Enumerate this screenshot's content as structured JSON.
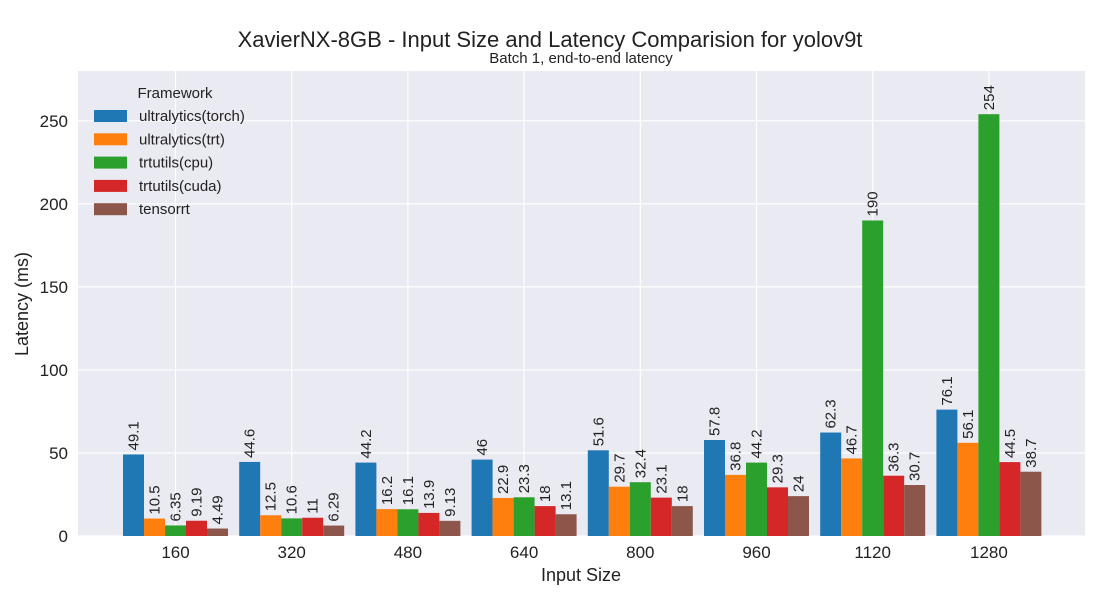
{
  "chart_data": {
    "type": "bar",
    "title": "XavierNX-8GB - Input Size and Latency Comparision for yolov9t",
    "subtitle": "Batch 1, end-to-end latency",
    "xlabel": "Input Size",
    "ylabel": "Latency (ms)",
    "categories": [
      "160",
      "320",
      "480",
      "640",
      "800",
      "960",
      "1120",
      "1280"
    ],
    "ylim": [
      0,
      280
    ],
    "yticks": [
      0,
      50,
      100,
      150,
      200,
      250
    ],
    "grid": true,
    "legend": {
      "title": "Framework",
      "placement": "top-left"
    },
    "series": [
      {
        "name": "ultralytics(torch)",
        "color": "#1f77b4",
        "values": [
          49.1,
          44.6,
          44.2,
          46,
          51.6,
          57.8,
          62.3,
          76.1
        ]
      },
      {
        "name": "ultralytics(trt)",
        "color": "#ff7f0e",
        "values": [
          10.5,
          12.5,
          16.2,
          22.9,
          29.7,
          36.8,
          46.7,
          56.1
        ]
      },
      {
        "name": "trtutils(cpu)",
        "color": "#2ca02c",
        "values": [
          6.35,
          10.6,
          16.1,
          23.3,
          32.4,
          44.2,
          190,
          254
        ]
      },
      {
        "name": "trtutils(cuda)",
        "color": "#d62728",
        "values": [
          9.19,
          11,
          13.9,
          18,
          23.1,
          29.3,
          36.3,
          44.5
        ]
      },
      {
        "name": "tensorrt",
        "color": "#8c564b",
        "values": [
          4.49,
          6.29,
          9.13,
          13.1,
          18,
          24,
          30.7,
          38.7
        ]
      }
    ]
  }
}
